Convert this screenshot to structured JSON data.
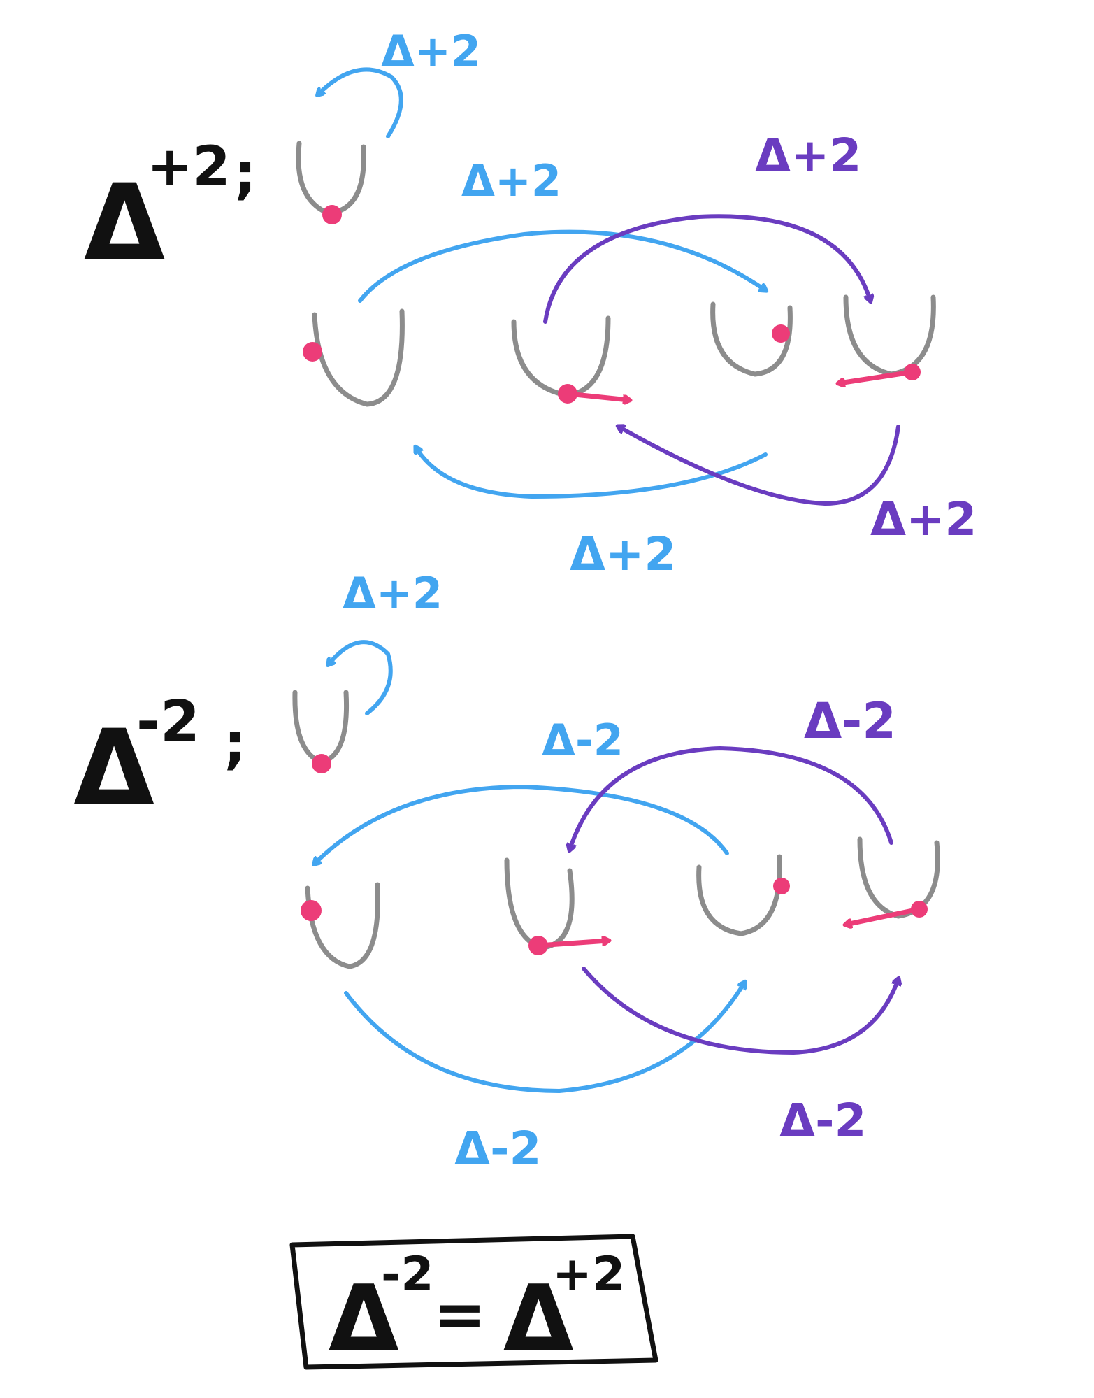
{
  "colors": {
    "background": "#ffffff",
    "black": "#111111",
    "gray": "#8c8c8c",
    "blue": "#42a5f0",
    "purple": "#6a3cc0",
    "pink": "#ec3c78"
  },
  "top_section": {
    "heading": {
      "symbol": "Δ",
      "exponent": "+2",
      "colon": ";"
    },
    "labels": {
      "self_loop": "Δ+2",
      "blue_top": "Δ+2",
      "purple_top": "Δ+2",
      "blue_bottom": "Δ+2",
      "purple_bottom": "Δ+2"
    }
  },
  "bottom_section": {
    "heading": {
      "symbol": "Δ",
      "exponent": "-2",
      "colon": ";"
    },
    "labels": {
      "self_loop": "Δ+2",
      "blue_top": "Δ-2",
      "purple_top": "Δ-2",
      "blue_bottom": "Δ-2",
      "purple_bottom": "Δ-2"
    }
  },
  "conclusion": {
    "left_symbol": "Δ",
    "left_exponent": "-2",
    "equals": "=",
    "right_symbol": "Δ",
    "right_exponent": "+2"
  }
}
